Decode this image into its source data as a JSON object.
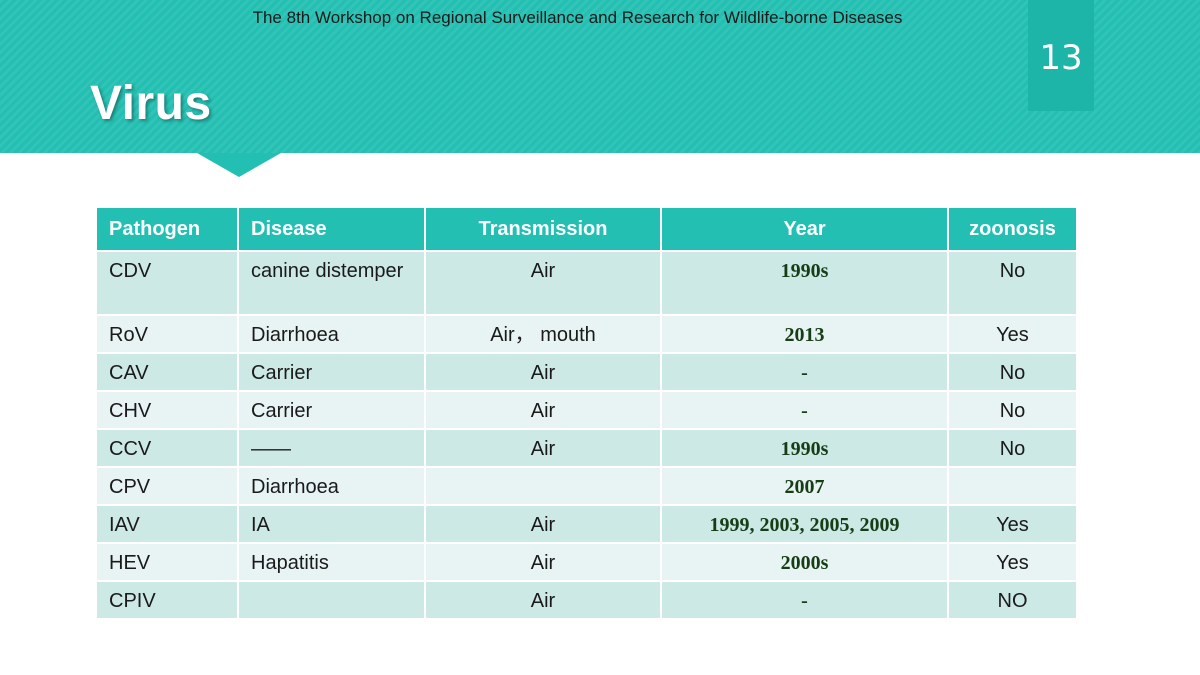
{
  "header": {
    "workshop": "The 8th Workshop on Regional Surveillance and Research for Wildlife-borne Diseases",
    "page_number": "13",
    "title": "Virus"
  },
  "colors": {
    "accent": "#22bfb2",
    "page_box": "#1db5a8",
    "row_odd": "#cce9e6",
    "row_even": "#e7f4f3",
    "year_text": "#163d16"
  },
  "table": {
    "headers": [
      "Pathogen",
      "Disease",
      "Transmission",
      "Year",
      "zoonosis"
    ],
    "rows": [
      [
        "CDV",
        "canine distemper",
        "Air",
        "1990s",
        "No"
      ],
      [
        "RoV",
        "Diarrhoea",
        "Air， mouth",
        "2013",
        "Yes"
      ],
      [
        "CAV",
        "Carrier",
        "Air",
        "-",
        "No"
      ],
      [
        "CHV",
        "Carrier",
        "Air",
        "-",
        "No"
      ],
      [
        "CCV",
        "——",
        "Air",
        "1990s",
        "No"
      ],
      [
        "CPV",
        "Diarrhoea",
        "",
        "2007",
        ""
      ],
      [
        "IAV",
        "IA",
        "Air",
        "1999, 2003, 2005, 2009",
        "Yes"
      ],
      [
        "HEV",
        "Hapatitis",
        "Air",
        "2000s",
        "Yes"
      ],
      [
        "CPIV",
        "",
        "Air",
        "-",
        "NO"
      ]
    ]
  }
}
